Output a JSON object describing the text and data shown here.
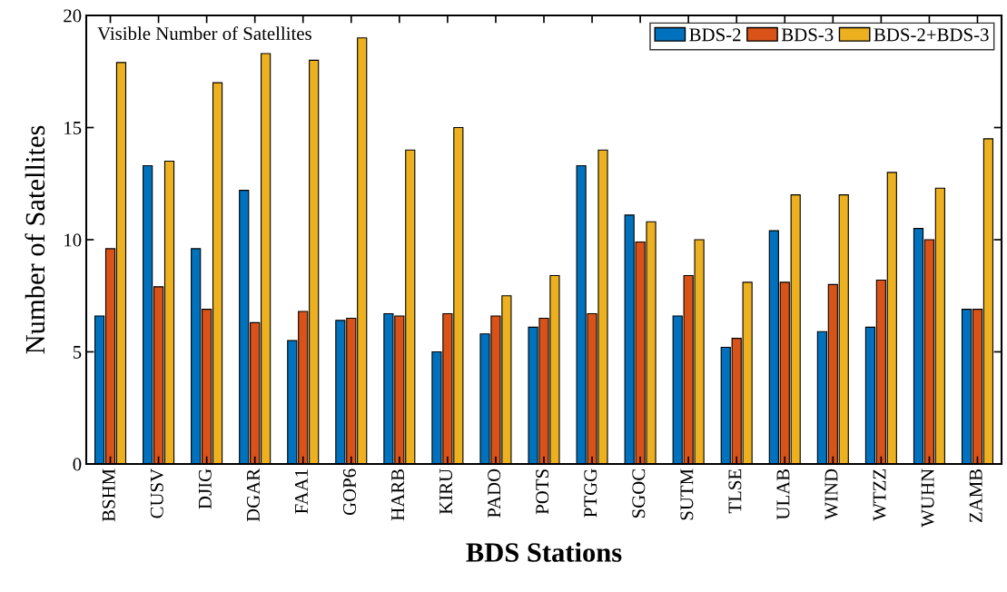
{
  "chart_data": {
    "type": "bar",
    "title": "Visible Number of Satellites",
    "xlabel": "BDS Stations",
    "ylabel": "Number of Satellites",
    "categories": [
      "BSHM",
      "CUSV",
      "DJIG",
      "DGAR",
      "FAA1",
      "GOP6",
      "HARB",
      "KIRU",
      "PADO",
      "POTS",
      "PTGG",
      "SGOC",
      "SUTM",
      "TLSE",
      "ULAB",
      "WIND",
      "WTZZ",
      "WUHN",
      "ZAMB"
    ],
    "series": [
      {
        "name": "BDS-2",
        "color": "#0072bd",
        "values": [
          6.6,
          13.3,
          9.6,
          12.2,
          5.5,
          6.4,
          6.7,
          5.0,
          5.8,
          6.1,
          13.3,
          11.1,
          6.6,
          5.2,
          10.4,
          5.9,
          6.1,
          10.5,
          6.9
        ]
      },
      {
        "name": "BDS-3",
        "color": "#d95319",
        "values": [
          9.6,
          7.9,
          6.9,
          6.3,
          6.8,
          6.5,
          6.6,
          6.7,
          6.6,
          6.5,
          6.7,
          9.9,
          8.4,
          5.6,
          8.1,
          8.0,
          8.2,
          10.0,
          6.9
        ]
      },
      {
        "name": "BDS-2+BDS-3",
        "color": "#edb120",
        "values": [
          17.9,
          13.5,
          17.0,
          18.3,
          18.0,
          19.0,
          14.0,
          15.0,
          7.5,
          8.4,
          14.0,
          10.8,
          10.0,
          8.1,
          12.0,
          12.0,
          13.0,
          12.3,
          14.5
        ]
      }
    ],
    "ylim": [
      0,
      20
    ],
    "yticks": [
      0,
      5,
      10,
      15,
      20
    ],
    "grid": false,
    "legend": "top right"
  }
}
